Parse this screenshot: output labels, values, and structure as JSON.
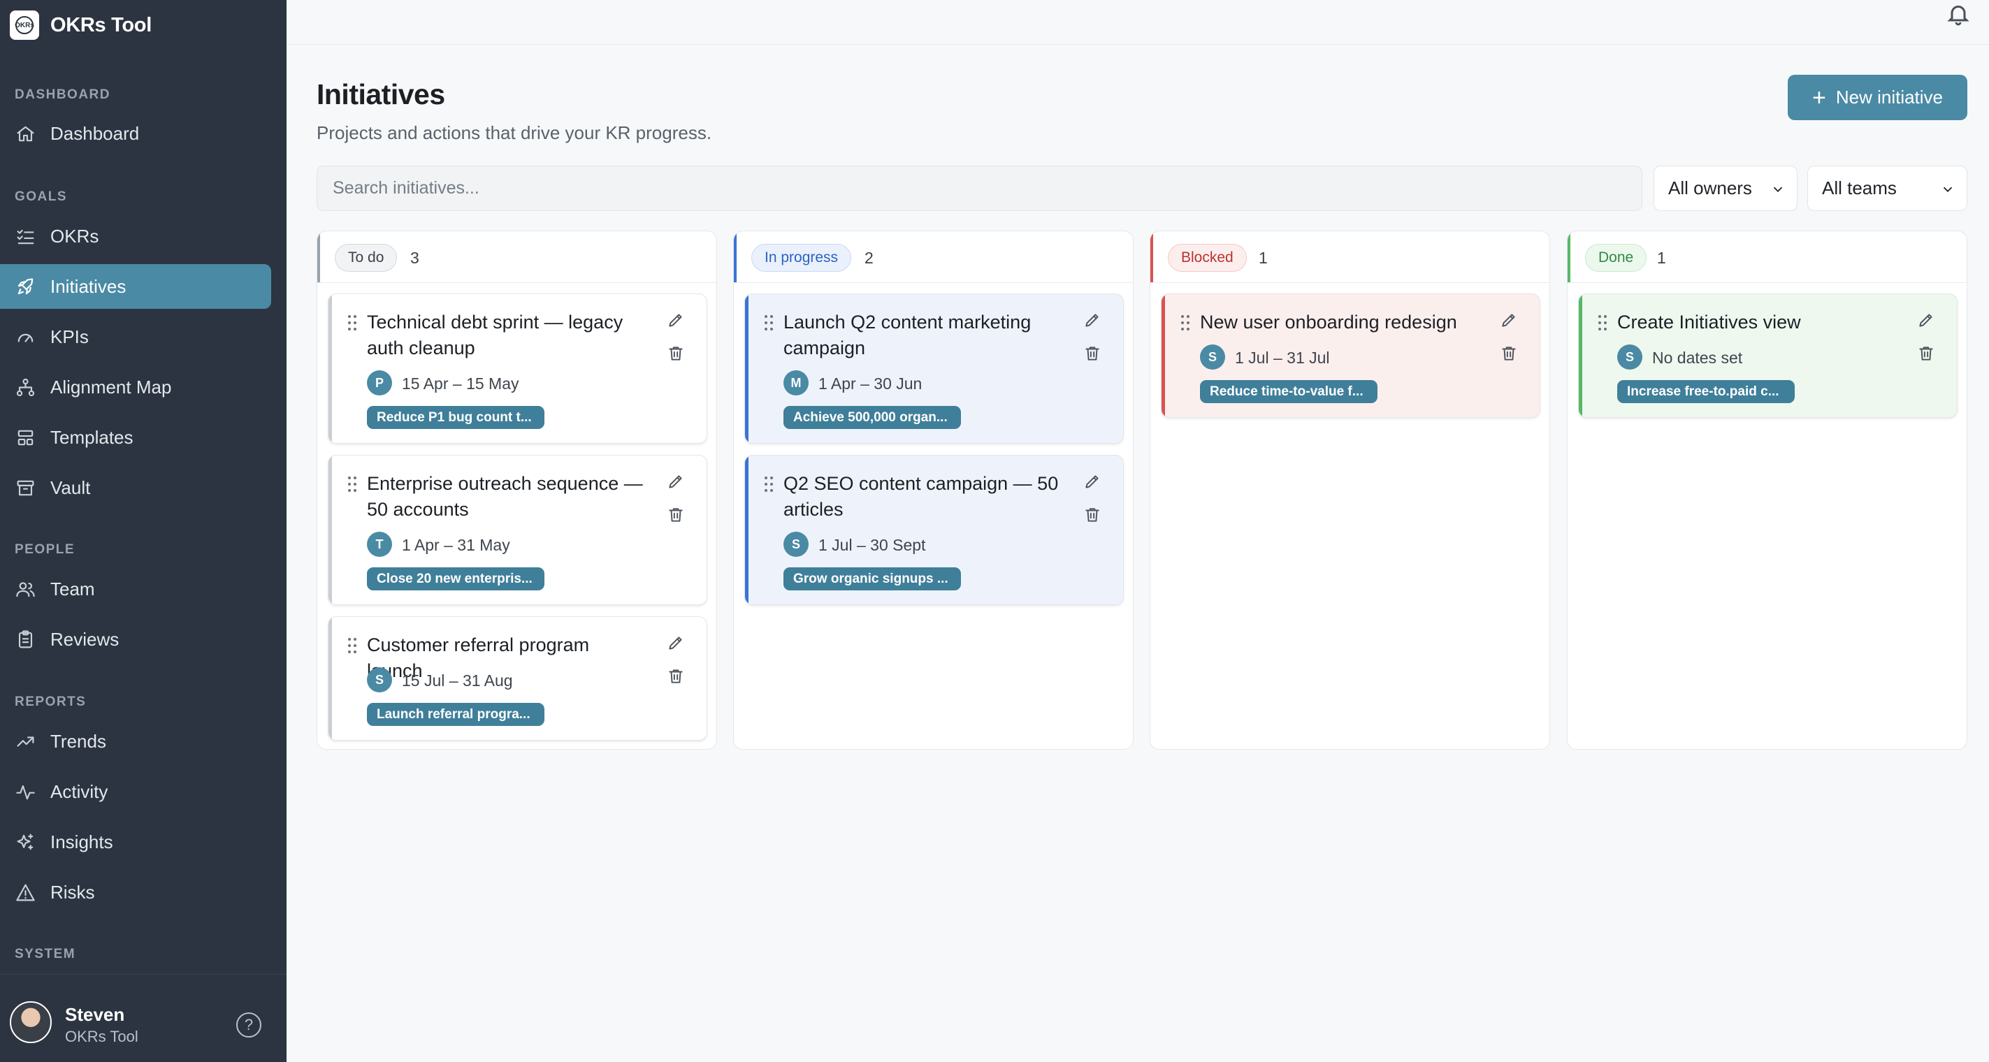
{
  "app": {
    "name": "OKRs Tool",
    "logo_text": "OKRs"
  },
  "sidebar": {
    "sections": [
      {
        "label": "DASHBOARD",
        "items": [
          {
            "label": "Dashboard",
            "icon": "home-icon"
          }
        ]
      },
      {
        "label": "GOALS",
        "items": [
          {
            "label": "OKRs",
            "icon": "list-check-icon"
          },
          {
            "label": "Initiatives",
            "icon": "rocket-icon",
            "active": true
          },
          {
            "label": "KPIs",
            "icon": "gauge-icon"
          },
          {
            "label": "Alignment Map",
            "icon": "sitemap-icon"
          },
          {
            "label": "Templates",
            "icon": "layout-icon"
          },
          {
            "label": "Vault",
            "icon": "archive-icon"
          }
        ]
      },
      {
        "label": "PEOPLE",
        "items": [
          {
            "label": "Team",
            "icon": "users-icon"
          },
          {
            "label": "Reviews",
            "icon": "clipboard-icon"
          }
        ]
      },
      {
        "label": "REPORTS",
        "items": [
          {
            "label": "Trends",
            "icon": "trending-up-icon"
          },
          {
            "label": "Activity",
            "icon": "activity-icon"
          },
          {
            "label": "Insights",
            "icon": "sparkles-icon"
          },
          {
            "label": "Risks",
            "icon": "warning-icon"
          }
        ]
      },
      {
        "label": "SYSTEM",
        "items": []
      }
    ],
    "user": {
      "name": "Steven",
      "org": "OKRs Tool"
    }
  },
  "header": {
    "title": "Initiatives",
    "subtitle": "Projects and actions that drive your KR progress.",
    "new_button": "New initiative"
  },
  "filters": {
    "search_placeholder": "Search initiatives...",
    "owner_filter": "All owners",
    "team_filter": "All teams"
  },
  "colors": {
    "accent": "#4a8aa4",
    "sidebar_bg": "#2b3440",
    "todo": "#9aa3ad",
    "in_progress": "#3b73d6",
    "blocked": "#d9534f",
    "done": "#57b866"
  },
  "columns": [
    {
      "label": "To do",
      "count": "3",
      "cards": [
        {
          "title": "Technical debt sprint — legacy auth cleanup",
          "owner": "P",
          "dates": "15 Apr – 15 May",
          "kr": "Reduce P1 bug count t..."
        },
        {
          "title": "Enterprise outreach sequence — 50 accounts",
          "owner": "T",
          "dates": "1 Apr – 31 May",
          "kr": "Close 20 new enterpris..."
        },
        {
          "title": "Customer referral program launch",
          "owner": "S",
          "dates": "15 Jul – 31 Aug",
          "kr": "Launch referral progra..."
        }
      ]
    },
    {
      "label": "In progress",
      "count": "2",
      "cards": [
        {
          "title": "Launch Q2 content marketing campaign",
          "owner": "M",
          "dates": "1 Apr – 30 Jun",
          "kr": "Achieve 500,000 organ..."
        },
        {
          "title": "Q2 SEO content campaign — 50 articles",
          "owner": "S",
          "dates": "1 Jul – 30 Sept",
          "kr": "Grow organic signups ..."
        }
      ]
    },
    {
      "label": "Blocked",
      "count": "1",
      "cards": [
        {
          "title": "New user onboarding redesign",
          "owner": "S",
          "dates": "1 Jul – 31 Jul",
          "kr": "Reduce time-to-value f..."
        }
      ]
    },
    {
      "label": "Done",
      "count": "1",
      "cards": [
        {
          "title": "Create Initiatives view",
          "owner": "S",
          "dates": "No dates set",
          "kr": "Increase free-to.paid c..."
        }
      ]
    }
  ]
}
